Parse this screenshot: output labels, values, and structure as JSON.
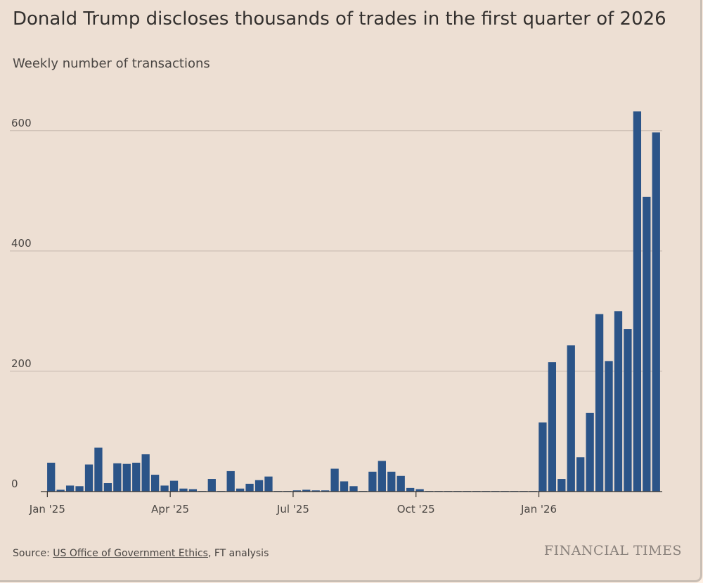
{
  "source": {
    "prefix": "Source: ",
    "link": "US Office of Government Ethics",
    "suffix": ", FT analysis"
  },
  "logo_text": "FINANCIAL TIMES",
  "colors": {
    "bar": "#2b5488",
    "grid": "#cdbfb4",
    "axis": "#33302e",
    "background": "#eddfd3"
  },
  "chart_data": {
    "type": "bar",
    "title": "Donald Trump discloses thousands of trades in the first quarter of 2026",
    "subtitle": "Weekly number of transactions",
    "xlabel": "",
    "ylabel": "",
    "ylim": [
      0,
      650
    ],
    "yticks": [
      0,
      200,
      400,
      600
    ],
    "grid": true,
    "x_start_label": "Jan '25",
    "x_ticks": [
      {
        "label": "Jan '25",
        "week": 0
      },
      {
        "label": "Apr '25",
        "week": 13
      },
      {
        "label": "Jul '25",
        "week": 26
      },
      {
        "label": "Oct '25",
        "week": 39
      },
      {
        "label": "Jan '26",
        "week": 52
      }
    ],
    "values": [
      48,
      3,
      10,
      9,
      45,
      73,
      14,
      47,
      46,
      48,
      62,
      28,
      10,
      18,
      5,
      4,
      1,
      21,
      1,
      34,
      5,
      13,
      19,
      25,
      1,
      1,
      2,
      3,
      2,
      2,
      38,
      17,
      9,
      1,
      33,
      51,
      33,
      26,
      6,
      4,
      1,
      1,
      1,
      1,
      1,
      1,
      1,
      1,
      1,
      1,
      1,
      1,
      115,
      215,
      21,
      243,
      57,
      131,
      295,
      217,
      300,
      270,
      632,
      490,
      597
    ]
  }
}
